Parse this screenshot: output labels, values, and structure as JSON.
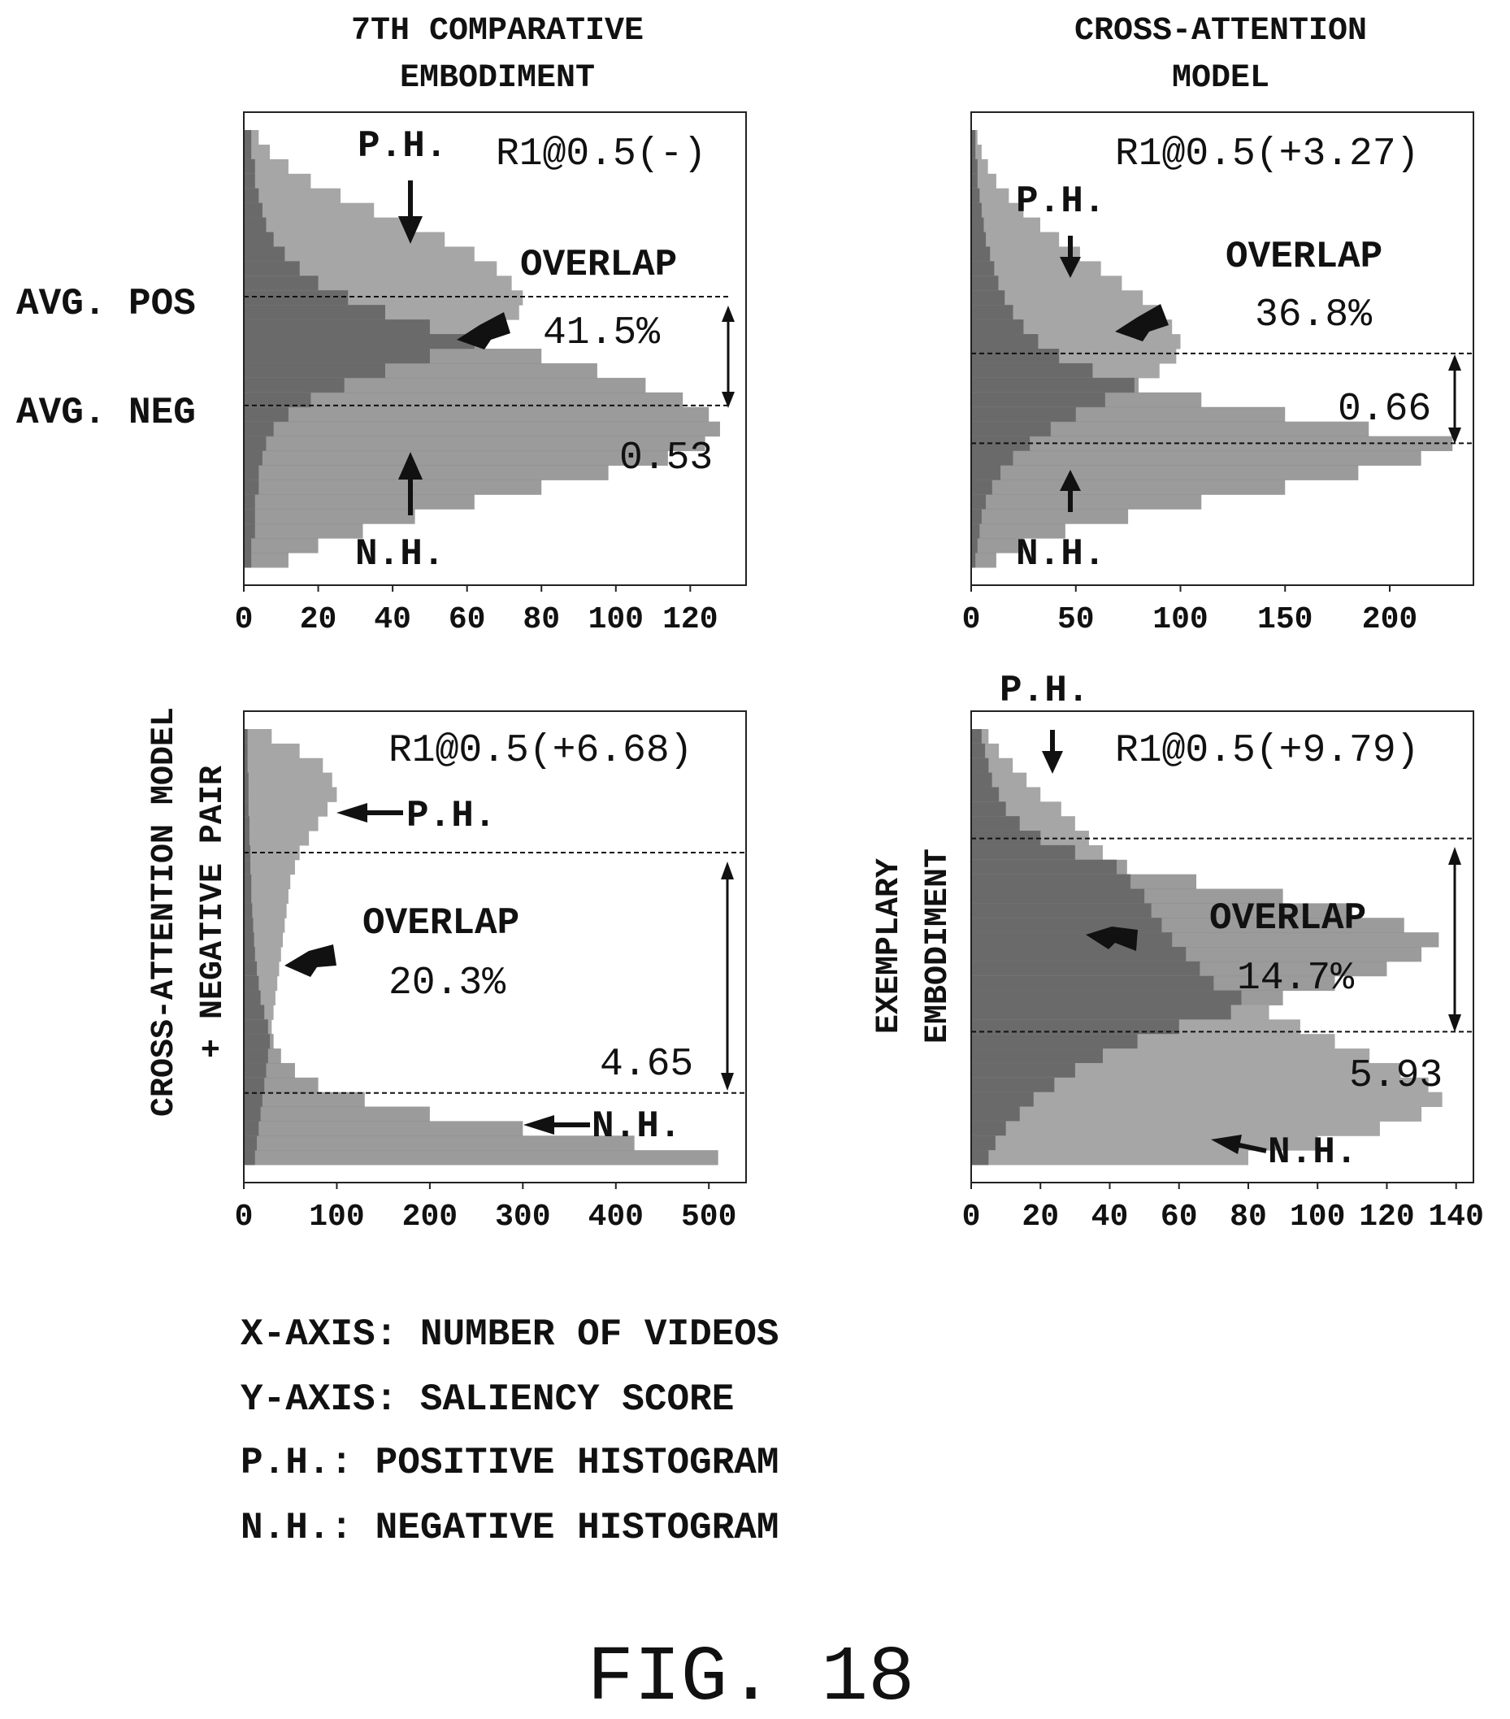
{
  "figure_label": "FIG. 18",
  "legend": [
    "X-AXIS: NUMBER OF VIDEOS",
    "Y-AXIS: SALIENCY SCORE",
    "P.H.: POSITIVE HISTOGRAM",
    "N.H.: NEGATIVE HISTOGRAM"
  ],
  "colors": {
    "positive": "#a6a6a6",
    "negative": "#8a8a8a",
    "overlap": "#6a6a6a",
    "text": "#111111"
  },
  "chart_data": [
    {
      "type": "histogram",
      "orientation": "horizontal",
      "title": "7TH COMPARATIVE EMBODIMENT",
      "side_labels": [
        "AVG. POS",
        "AVG. NEG"
      ],
      "metric": "R1@0.5(-)",
      "overlap_label": "OVERLAP",
      "overlap": "41.5%",
      "gap": "0.53",
      "ph_label": "P.H.",
      "nh_label": "N.H.",
      "xticks": [
        "0",
        "20",
        "40",
        "60",
        "80",
        "100",
        "120"
      ],
      "xlim": [
        0,
        135
      ],
      "avg_pos": 0.61,
      "avg_neg": 0.38,
      "positive_hist": [
        4,
        7,
        12,
        18,
        26,
        35,
        44,
        54,
        62,
        68,
        72,
        75,
        74,
        70,
        62,
        50,
        38,
        27,
        18,
        12,
        8,
        6,
        5,
        4,
        4,
        3,
        3,
        3,
        2,
        2
      ],
      "negative_hist": [
        2,
        2,
        3,
        3,
        4,
        5,
        6,
        8,
        11,
        15,
        20,
        28,
        38,
        50,
        64,
        80,
        95,
        108,
        118,
        125,
        128,
        124,
        114,
        98,
        80,
        62,
        46,
        32,
        20,
        12
      ]
    },
    {
      "type": "histogram",
      "orientation": "horizontal",
      "title": "CROSS-ATTENTION MODEL",
      "metric": "R1@0.5(+3.27)",
      "overlap_label": "OVERLAP",
      "overlap": "36.8%",
      "gap": "0.66",
      "ph_label": "P.H.",
      "nh_label": "N.H.",
      "xticks": [
        "0",
        "50",
        "100",
        "150",
        "200"
      ],
      "xlim": [
        0,
        240
      ],
      "avg_pos": 0.49,
      "avg_neg": 0.3,
      "positive_hist": [
        3,
        5,
        8,
        12,
        18,
        25,
        33,
        42,
        52,
        62,
        72,
        82,
        90,
        96,
        100,
        98,
        90,
        78,
        64,
        50,
        38,
        28,
        20,
        14,
        10,
        7,
        5,
        4,
        3,
        2
      ],
      "negative_hist": [
        2,
        2,
        3,
        3,
        4,
        5,
        6,
        7,
        9,
        11,
        13,
        16,
        20,
        25,
        32,
        42,
        58,
        80,
        110,
        150,
        190,
        230,
        215,
        185,
        150,
        110,
        75,
        45,
        25,
        12
      ]
    },
    {
      "type": "histogram",
      "orientation": "horizontal",
      "title": "CROSS-ATTENTION MODEL + NEGATIVE PAIR",
      "metric": "R1@0.5(+6.68)",
      "overlap_label": "OVERLAP",
      "overlap": "20.3%",
      "gap": "4.65",
      "ph_label": "P.H.",
      "nh_label": "N.H.",
      "xticks": [
        "0",
        "100",
        "200",
        "300",
        "400",
        "500"
      ],
      "xlim": [
        0,
        540
      ],
      "avg_pos": 0.7,
      "avg_neg": 0.19,
      "positive_hist": [
        30,
        60,
        85,
        95,
        100,
        90,
        80,
        70,
        60,
        55,
        50,
        48,
        46,
        44,
        42,
        40,
        38,
        36,
        34,
        32,
        30,
        28,
        26,
        24,
        22,
        20,
        18,
        16,
        14,
        12
      ],
      "negative_hist": [
        4,
        4,
        4,
        5,
        5,
        5,
        6,
        6,
        7,
        7,
        8,
        8,
        9,
        10,
        11,
        12,
        14,
        16,
        18,
        22,
        26,
        32,
        40,
        55,
        80,
        130,
        200,
        300,
        420,
        510
      ]
    },
    {
      "type": "histogram",
      "orientation": "horizontal",
      "title": "EXEMPLARY EMBODIMENT",
      "metric": "R1@0.5(+9.79)",
      "overlap_label": "OVERLAP",
      "overlap": "14.7%",
      "gap": "5.93",
      "ph_label": "P.H.",
      "nh_label": "N.H.",
      "xticks": [
        "0",
        "20",
        "40",
        "60",
        "80",
        "100",
        "120",
        "140"
      ],
      "xlim": [
        0,
        145
      ],
      "avg_pos": 0.73,
      "avg_neg": 0.32,
      "positive_hist": [
        5,
        8,
        12,
        16,
        20,
        26,
        30,
        34,
        38,
        42,
        46,
        50,
        52,
        55,
        58,
        62,
        66,
        70,
        78,
        86,
        95,
        105,
        115,
        124,
        132,
        136,
        130,
        118,
        100,
        80
      ],
      "negative_hist": [
        3,
        4,
        5,
        6,
        8,
        10,
        14,
        20,
        30,
        45,
        65,
        90,
        110,
        125,
        135,
        130,
        120,
        105,
        90,
        75,
        60,
        48,
        38,
        30,
        24,
        18,
        14,
        10,
        7,
        5
      ]
    }
  ]
}
